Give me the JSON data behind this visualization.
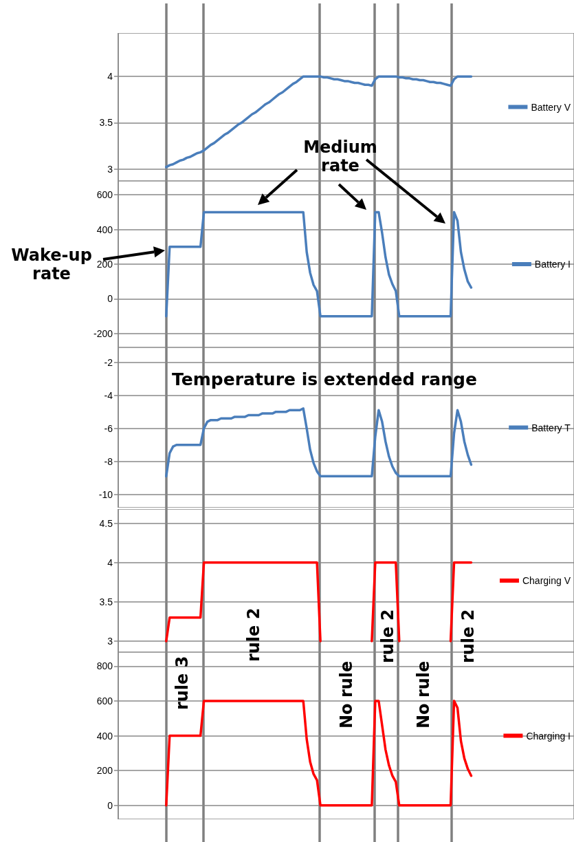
{
  "chart_data": [
    {
      "type": "line",
      "categories": [
        null,
        null,
        null,
        null,
        null,
        null,
        null,
        null,
        null,
        null,
        null,
        null,
        null,
        null,
        null,
        null,
        null,
        null,
        null,
        null,
        null,
        null,
        null,
        null,
        null,
        null,
        null,
        null,
        null,
        null,
        null,
        null,
        null,
        null,
        null,
        null,
        null,
        null,
        null,
        null,
        null,
        null,
        null,
        null,
        null,
        null,
        null,
        null,
        null,
        null,
        null,
        null,
        null,
        null,
        null,
        null,
        null,
        null,
        null,
        null,
        null,
        null,
        null,
        null,
        null,
        null,
        null,
        null,
        null,
        null,
        null,
        null,
        null,
        null,
        null,
        null,
        null,
        null,
        null,
        null,
        null,
        null,
        null,
        null,
        null,
        null,
        null,
        null,
        null,
        null,
        null,
        null,
        null,
        null,
        null,
        null,
        null,
        null,
        null,
        null,
        null,
        null,
        null,
        null,
        null,
        null,
        null,
        null,
        null,
        null,
        null,
        null,
        null,
        null,
        null,
        null,
        null,
        null,
        null,
        null,
        null,
        null,
        null,
        null,
        null,
        null,
        null,
        null,
        null,
        null,
        null,
        null,
        null,
        null
      ],
      "ylim": [
        2.87,
        4.47
      ],
      "yticks": [
        3,
        3.5,
        4
      ],
      "tick_labels": "y",
      "grid": "y",
      "legend": "right",
      "series": [
        {
          "name": "Battery V",
          "color": "#4a7ebb",
          "values": [
            null,
            null,
            null,
            null,
            null,
            null,
            null,
            null,
            null,
            null,
            null,
            null,
            null,
            null,
            3.02,
            3.04,
            3.05,
            3.07,
            3.09,
            3.1,
            3.12,
            3.13,
            3.15,
            3.17,
            3.18,
            3.2,
            3.23,
            3.26,
            3.28,
            3.31,
            3.34,
            3.37,
            3.39,
            3.42,
            3.45,
            3.48,
            3.5,
            3.53,
            3.56,
            3.59,
            3.61,
            3.64,
            3.67,
            3.7,
            3.72,
            3.75,
            3.78,
            3.81,
            3.83,
            3.86,
            3.89,
            3.92,
            3.94,
            3.97,
            4.0,
            4.0,
            4.0,
            4.0,
            4.0,
            4.0,
            3.99,
            3.99,
            3.98,
            3.97,
            3.97,
            3.96,
            3.95,
            3.95,
            3.94,
            3.93,
            3.93,
            3.92,
            3.91,
            3.91,
            3.9,
            3.97,
            4.0,
            4.0,
            4.0,
            4.0,
            4.0,
            4.0,
            3.99,
            3.99,
            3.98,
            3.98,
            3.97,
            3.97,
            3.96,
            3.96,
            3.95,
            3.94,
            3.94,
            3.93,
            3.93,
            3.92,
            3.91,
            3.9,
            3.97,
            4.0,
            4.0,
            4.0,
            4.0,
            4.0,
            null,
            null,
            null,
            null,
            null,
            null,
            null,
            null,
            null,
            null,
            null,
            null,
            null,
            null,
            null,
            null,
            null,
            null,
            null,
            null,
            null,
            null,
            null,
            null,
            null,
            null,
            null,
            null,
            null,
            null
          ]
        }
      ],
      "line_style": "solid"
    },
    {
      "type": "line",
      "categories": [
        null,
        null,
        null,
        null,
        null,
        null,
        null,
        null,
        null,
        null,
        null,
        null,
        null,
        null,
        null,
        null,
        null,
        null,
        null,
        null,
        null,
        null,
        null,
        null,
        null,
        null,
        null,
        null,
        null,
        null,
        null,
        null,
        null,
        null,
        null,
        null,
        null,
        null,
        null,
        null,
        null,
        null,
        null,
        null,
        null,
        null,
        null,
        null,
        null,
        null,
        null,
        null,
        null,
        null,
        null,
        null,
        null,
        null,
        null,
        null,
        null,
        null,
        null,
        null,
        null,
        null,
        null,
        null,
        null,
        null,
        null,
        null,
        null,
        null,
        null,
        null,
        null,
        null,
        null,
        null,
        null,
        null,
        null,
        null,
        null,
        null,
        null,
        null,
        null,
        null,
        null,
        null,
        null,
        null,
        null,
        null,
        null,
        null,
        null,
        null,
        null,
        null,
        null,
        null,
        null,
        null,
        null,
        null,
        null,
        null,
        null,
        null,
        null,
        null,
        null,
        null,
        null,
        null,
        null,
        null,
        null,
        null,
        null,
        null,
        null,
        null,
        null,
        null,
        null,
        null,
        null,
        null,
        null,
        null
      ],
      "ylim": [
        -280,
        680
      ],
      "yticks": [
        -200,
        0,
        200,
        400,
        600
      ],
      "tick_labels": "y",
      "grid": "y",
      "legend": "right",
      "line_style": "solid",
      "series": [
        {
          "name": "Battery I",
          "color": "#4a7ebb",
          "values": [
            null,
            null,
            null,
            null,
            null,
            null,
            null,
            null,
            null,
            null,
            null,
            null,
            null,
            null,
            -100,
            300,
            300,
            300,
            300,
            300,
            300,
            300,
            300,
            300,
            300,
            500,
            500,
            500,
            500,
            500,
            500,
            500,
            500,
            500,
            500,
            500,
            500,
            500,
            500,
            500,
            500,
            500,
            500,
            500,
            500,
            500,
            500,
            500,
            500,
            500,
            500,
            500,
            500,
            500,
            500,
            270,
            150,
            80,
            45,
            -100,
            -100,
            -100,
            -100,
            -100,
            -100,
            -100,
            -100,
            -100,
            -100,
            -100,
            -100,
            -100,
            -100,
            -100,
            -100,
            500,
            500,
            380,
            240,
            140,
            85,
            45,
            -100,
            -100,
            -100,
            -100,
            -100,
            -100,
            -100,
            -100,
            -100,
            -100,
            -100,
            -100,
            -100,
            -100,
            -100,
            -100,
            500,
            450,
            270,
            170,
            100,
            65,
            null,
            null,
            null,
            null,
            null,
            null,
            null,
            null,
            null,
            null,
            null,
            null,
            null,
            null,
            null,
            null,
            null,
            null,
            null,
            null,
            null,
            null,
            null,
            null,
            null,
            null,
            null,
            null,
            null,
            null
          ]
        }
      ],
      "annotations": [
        "Wake-up rate",
        "Medium rate"
      ]
    },
    {
      "type": "line",
      "categories": [
        null,
        null,
        null,
        null,
        null,
        null,
        null,
        null,
        null,
        null,
        null,
        null,
        null,
        null,
        null,
        null,
        null,
        null,
        null,
        null,
        null,
        null,
        null,
        null,
        null,
        null,
        null,
        null,
        null,
        null,
        null,
        null,
        null,
        null,
        null,
        null,
        null,
        null,
        null,
        null,
        null,
        null,
        null,
        null,
        null,
        null,
        null,
        null,
        null,
        null,
        null,
        null,
        null,
        null,
        null,
        null,
        null,
        null,
        null,
        null,
        null,
        null,
        null,
        null,
        null,
        null,
        null,
        null,
        null,
        null,
        null,
        null,
        null,
        null,
        null,
        null,
        null,
        null,
        null,
        null,
        null,
        null,
        null,
        null,
        null,
        null,
        null,
        null,
        null,
        null,
        null,
        null,
        null,
        null,
        null,
        null,
        null,
        null,
        null,
        null,
        null,
        null,
        null,
        null,
        null,
        null,
        null,
        null,
        null,
        null,
        null,
        null,
        null,
        null,
        null,
        null,
        null,
        null,
        null,
        null,
        null,
        null,
        null,
        null,
        null,
        null,
        null,
        null,
        null,
        null,
        null,
        null,
        null,
        null
      ],
      "ylim": [
        -10.8,
        -1.1
      ],
      "yticks": [
        -10,
        -8,
        -6,
        -4,
        -2
      ],
      "tick_labels": "y",
      "grid": "y",
      "legend": "right",
      "line_style": "solid",
      "series": [
        {
          "name": "Battery T",
          "color": "#4a7ebb",
          "values": [
            null,
            null,
            null,
            null,
            null,
            null,
            null,
            null,
            null,
            null,
            null,
            null,
            null,
            null,
            -8.9,
            -7.5,
            -7.1,
            -7.0,
            -7.0,
            -7.0,
            -7.0,
            -7.0,
            -7.0,
            -7.0,
            -7.0,
            -6.0,
            -5.6,
            -5.5,
            -5.5,
            -5.5,
            -5.4,
            -5.4,
            -5.4,
            -5.4,
            -5.3,
            -5.3,
            -5.3,
            -5.3,
            -5.2,
            -5.2,
            -5.2,
            -5.2,
            -5.1,
            -5.1,
            -5.1,
            -5.1,
            -5.0,
            -5.0,
            -5.0,
            -5.0,
            -4.9,
            -4.9,
            -4.9,
            -4.9,
            -4.8,
            -6.0,
            -7.3,
            -8.1,
            -8.6,
            -8.9,
            -8.9,
            -8.9,
            -8.9,
            -8.9,
            -8.9,
            -8.9,
            -8.9,
            -8.9,
            -8.9,
            -8.9,
            -8.9,
            -8.9,
            -8.9,
            -8.9,
            -8.9,
            -6.5,
            -4.9,
            -5.6,
            -6.8,
            -7.7,
            -8.3,
            -8.7,
            -8.9,
            -8.9,
            -8.9,
            -8.9,
            -8.9,
            -8.9,
            -8.9,
            -8.9,
            -8.9,
            -8.9,
            -8.9,
            -8.9,
            -8.9,
            -8.9,
            -8.9,
            -8.9,
            -6.3,
            -4.9,
            -5.6,
            -6.8,
            -7.6,
            -8.2,
            null,
            null,
            null,
            null,
            null,
            null,
            null,
            null,
            null,
            null,
            null,
            null,
            null,
            null,
            null,
            null,
            null,
            null,
            null,
            null,
            null,
            null,
            null,
            null,
            null,
            null,
            null,
            null,
            null,
            null
          ]
        }
      ],
      "annotations": [
        "Temperature is extended range"
      ]
    },
    {
      "type": "line",
      "categories": [
        null,
        null,
        null,
        null,
        null,
        null,
        null,
        null,
        null,
        null,
        null,
        null,
        null,
        null,
        null,
        null,
        null,
        null,
        null,
        null,
        null,
        null,
        null,
        null,
        null,
        null,
        null,
        null,
        null,
        null,
        null,
        null,
        null,
        null,
        null,
        null,
        null,
        null,
        null,
        null,
        null,
        null,
        null,
        null,
        null,
        null,
        null,
        null,
        null,
        null,
        null,
        null,
        null,
        null,
        null,
        null,
        null,
        null,
        null,
        null,
        null,
        null,
        null,
        null,
        null,
        null,
        null,
        null,
        null,
        null,
        null,
        null,
        null,
        null,
        null,
        null,
        null,
        null,
        null,
        null,
        null,
        null,
        null,
        null,
        null,
        null,
        null,
        null,
        null,
        null,
        null,
        null,
        null,
        null,
        null,
        null,
        null,
        null,
        null,
        null,
        null,
        null,
        null,
        null,
        null,
        null,
        null,
        null,
        null,
        null,
        null,
        null,
        null,
        null,
        null,
        null,
        null,
        null,
        null,
        null,
        null,
        null,
        null,
        null,
        null,
        null,
        null,
        null,
        null,
        null,
        null,
        null,
        null,
        null
      ],
      "ylim": [
        2.86,
        4.68
      ],
      "yticks": [
        3,
        3.5,
        4,
        4.5
      ],
      "tick_labels": "y",
      "grid": "y",
      "legend": "right",
      "line_style": "solid",
      "series": [
        {
          "name": "Charging V",
          "color": "#ff0000",
          "values": [
            null,
            null,
            null,
            null,
            null,
            null,
            null,
            null,
            null,
            null,
            null,
            null,
            null,
            null,
            3,
            3.3,
            3.3,
            3.3,
            3.3,
            3.3,
            3.3,
            3.3,
            3.3,
            3.3,
            3.3,
            4,
            4,
            4,
            4,
            4,
            4,
            4,
            4,
            4,
            4,
            4,
            4,
            4,
            4,
            4,
            4,
            4,
            4,
            4,
            4,
            4,
            4,
            4,
            4,
            4,
            4,
            4,
            4,
            4,
            4,
            4,
            4,
            4,
            4,
            3,
            null,
            null,
            null,
            null,
            null,
            null,
            null,
            null,
            null,
            null,
            null,
            null,
            null,
            null,
            3,
            4,
            4,
            4,
            4,
            4,
            4,
            4,
            3,
            null,
            null,
            null,
            null,
            null,
            null,
            null,
            null,
            null,
            null,
            null,
            null,
            null,
            null,
            3,
            4,
            4,
            4,
            4,
            4,
            4,
            null,
            null,
            null,
            null,
            null,
            null,
            null,
            null,
            null,
            null,
            null,
            null,
            null,
            null,
            null,
            null,
            null,
            null,
            null,
            null,
            null,
            null,
            null,
            null,
            null,
            null,
            null,
            null,
            null,
            null
          ]
        }
      ],
      "annotations": [
        "rule 2",
        "rule 2",
        "rule 2"
      ]
    },
    {
      "type": "line",
      "categories": [
        null,
        null,
        null,
        null,
        null,
        null,
        null,
        null,
        null,
        null,
        null,
        null,
        null,
        null,
        null,
        null,
        null,
        null,
        null,
        null,
        null,
        null,
        null,
        null,
        null,
        null,
        null,
        null,
        null,
        null,
        null,
        null,
        null,
        null,
        null,
        null,
        null,
        null,
        null,
        null,
        null,
        null,
        null,
        null,
        null,
        null,
        null,
        null,
        null,
        null,
        null,
        null,
        null,
        null,
        null,
        null,
        null,
        null,
        null,
        null,
        null,
        null,
        null,
        null,
        null,
        null,
        null,
        null,
        null,
        null,
        null,
        null,
        null,
        null,
        null,
        null,
        null,
        null,
        null,
        null,
        null,
        null,
        null,
        null,
        null,
        null,
        null,
        null,
        null,
        null,
        null,
        null,
        null,
        null,
        null,
        null,
        null,
        null,
        null,
        null,
        null,
        null,
        null,
        null,
        null,
        null,
        null,
        null,
        null,
        null,
        null,
        null,
        null,
        null,
        null,
        null,
        null,
        null,
        null,
        null,
        null,
        null,
        null,
        null,
        null,
        null,
        null,
        null,
        null,
        null,
        null,
        null,
        null,
        null
      ],
      "ylim": [
        -80,
        880
      ],
      "yticks": [
        0,
        200,
        400,
        600,
        800
      ],
      "tick_labels": "y",
      "grid": "y",
      "legend": "right",
      "line_style": "solid",
      "series": [
        {
          "name": "Charging I",
          "color": "#ff0000",
          "values": [
            null,
            null,
            null,
            null,
            null,
            null,
            null,
            null,
            null,
            null,
            null,
            null,
            null,
            null,
            0,
            400,
            400,
            400,
            400,
            400,
            400,
            400,
            400,
            400,
            400,
            600,
            600,
            600,
            600,
            600,
            600,
            600,
            600,
            600,
            600,
            600,
            600,
            600,
            600,
            600,
            600,
            600,
            600,
            600,
            600,
            600,
            600,
            600,
            600,
            600,
            600,
            600,
            600,
            600,
            600,
            380,
            250,
            180,
            145,
            0,
            0,
            0,
            0,
            0,
            0,
            0,
            0,
            0,
            0,
            0,
            0,
            0,
            0,
            0,
            0,
            600,
            600,
            460,
            320,
            230,
            170,
            135,
            0,
            0,
            0,
            0,
            0,
            0,
            0,
            0,
            0,
            0,
            0,
            0,
            0,
            0,
            0,
            0,
            600,
            560,
            370,
            270,
            210,
            170,
            null,
            null,
            null,
            null,
            null,
            null,
            null,
            null,
            null,
            null,
            null,
            null,
            null,
            null,
            null,
            null,
            null,
            null,
            null,
            null,
            null,
            null,
            null,
            null,
            null,
            null,
            null,
            null,
            null,
            null
          ]
        }
      ],
      "annotations": [
        "rule 3",
        "No rule",
        "No rule"
      ]
    }
  ]
}
